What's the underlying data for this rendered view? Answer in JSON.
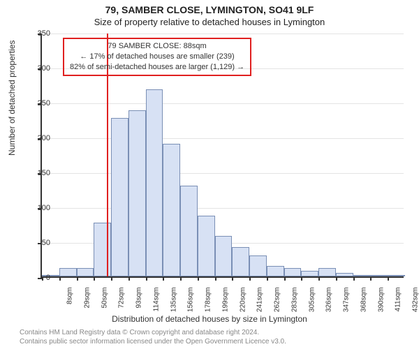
{
  "title": "79, SAMBER CLOSE, LYMINGTON, SO41 9LF",
  "subtitle": "Size of property relative to detached houses in Lymington",
  "chart": {
    "type": "histogram",
    "ylabel": "Number of detached properties",
    "xlabel": "Distribution of detached houses by size in Lymington",
    "ylim_max": 350,
    "ytick_step": 50,
    "bar_fill": "#d7e1f4",
    "bar_stroke": "#7a8fb5",
    "grid_color": "#e4e4e4",
    "axis_color": "#333333",
    "vline_color": "#e02020",
    "vline_x": 88,
    "bin_width": 21,
    "bins": [
      {
        "x": 8,
        "count": 2
      },
      {
        "x": 29,
        "count": 12
      },
      {
        "x": 50,
        "count": 12
      },
      {
        "x": 72,
        "count": 77
      },
      {
        "x": 93,
        "count": 227
      },
      {
        "x": 114,
        "count": 238
      },
      {
        "x": 135,
        "count": 268
      },
      {
        "x": 156,
        "count": 190
      },
      {
        "x": 178,
        "count": 130
      },
      {
        "x": 199,
        "count": 87
      },
      {
        "x": 220,
        "count": 58
      },
      {
        "x": 241,
        "count": 42
      },
      {
        "x": 262,
        "count": 30
      },
      {
        "x": 283,
        "count": 15
      },
      {
        "x": 305,
        "count": 12
      },
      {
        "x": 326,
        "count": 8
      },
      {
        "x": 347,
        "count": 12
      },
      {
        "x": 368,
        "count": 5
      },
      {
        "x": 390,
        "count": 2
      },
      {
        "x": 411,
        "count": 2
      },
      {
        "x": 432,
        "count": 2
      }
    ],
    "xticks": [
      "8sqm",
      "29sqm",
      "50sqm",
      "72sqm",
      "93sqm",
      "114sqm",
      "135sqm",
      "156sqm",
      "178sqm",
      "199sqm",
      "220sqm",
      "241sqm",
      "262sqm",
      "283sqm",
      "305sqm",
      "326sqm",
      "347sqm",
      "368sqm",
      "390sqm",
      "411sqm",
      "432sqm"
    ]
  },
  "annotation": {
    "lines": [
      "79 SAMBER CLOSE: 88sqm",
      "← 17% of detached houses are smaller (239)",
      "82% of semi-detached houses are larger (1,129) →"
    ],
    "border_color": "#e02020"
  },
  "credit": {
    "line1": "Contains HM Land Registry data © Crown copyright and database right 2024.",
    "line2": "Contains public sector information licensed under the Open Government Licence v3.0."
  }
}
